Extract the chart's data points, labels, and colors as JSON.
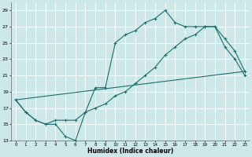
{
  "xlabel": "Humidex (Indice chaleur)",
  "ylabel": "",
  "bg_color": "#cce8e8",
  "grid_color": "#ffffff",
  "line_color": "#1a6e6a",
  "xlim": [
    -0.5,
    23.5
  ],
  "ylim": [
    13,
    30
  ],
  "yticks": [
    13,
    15,
    17,
    19,
    21,
    23,
    25,
    27,
    29
  ],
  "xticks": [
    0,
    1,
    2,
    3,
    4,
    5,
    6,
    7,
    8,
    9,
    10,
    11,
    12,
    13,
    14,
    15,
    16,
    17,
    18,
    19,
    20,
    21,
    22,
    23
  ],
  "line1_x": [
    0,
    1,
    2,
    3,
    4,
    5,
    6,
    7,
    8,
    9,
    10,
    11,
    12,
    13,
    14,
    15,
    16,
    17,
    18,
    19,
    20,
    21,
    22,
    23
  ],
  "line1_y": [
    18,
    16.5,
    15.5,
    15,
    15,
    13.5,
    13,
    16.5,
    19.5,
    19.5,
    25,
    26,
    26.5,
    27.5,
    28,
    29,
    27.5,
    27,
    27,
    27,
    27,
    24.5,
    23,
    21
  ],
  "line2_x": [
    0,
    1,
    2,
    3,
    4,
    5,
    6,
    7,
    8,
    9,
    10,
    11,
    12,
    13,
    14,
    15,
    16,
    17,
    18,
    19,
    20,
    21,
    22,
    23
  ],
  "line2_y": [
    18,
    16.5,
    15.5,
    15,
    15.5,
    15.5,
    15.5,
    16.5,
    17,
    17.5,
    18.5,
    19,
    20,
    21,
    22,
    23.5,
    24.5,
    25.5,
    26,
    27,
    27,
    25.5,
    24,
    21.5
  ],
  "line3_x": [
    0,
    23
  ],
  "line3_y": [
    18,
    21.5
  ],
  "figsize": [
    3.2,
    2.0
  ],
  "dpi": 100
}
